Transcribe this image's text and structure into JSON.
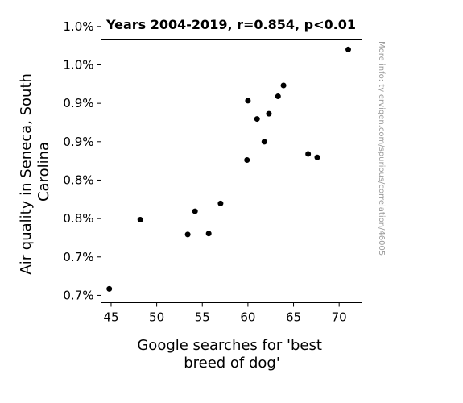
{
  "chart_data": {
    "type": "scatter",
    "title": "Years 2004-2019, r=0.854, p<0.01",
    "xlabel_lines": [
      "Google searches for 'best",
      "breed of dog'"
    ],
    "ylabel_lines": [
      "Air quality in Seneca, South",
      "Carolina"
    ],
    "side_note": "More info: tylervigen.com/spurious/correlation/46005",
    "xlim": [
      43.9,
      72.5
    ],
    "ylim": [
      0.006765,
      0.010185
    ],
    "x_ticks": [
      45,
      50,
      55,
      60,
      65,
      70
    ],
    "y_ticks": [
      {
        "value": 0.00686,
        "label": "0.7%"
      },
      {
        "value": 0.00736,
        "label": "0.7%"
      },
      {
        "value": 0.00786,
        "label": "0.8%"
      },
      {
        "value": 0.00836,
        "label": "0.8%"
      },
      {
        "value": 0.00886,
        "label": "0.9%"
      },
      {
        "value": 0.00936,
        "label": "0.9%"
      },
      {
        "value": 0.00986,
        "label": "1.0%"
      },
      {
        "value": 0.01036,
        "label": "1.0%"
      }
    ],
    "points": [
      {
        "x": 44.8,
        "y": 0.006945
      },
      {
        "x": 48.2,
        "y": 0.007845
      },
      {
        "x": 53.4,
        "y": 0.007653
      },
      {
        "x": 54.2,
        "y": 0.007955
      },
      {
        "x": 55.7,
        "y": 0.007665
      },
      {
        "x": 57.0,
        "y": 0.008057
      },
      {
        "x": 59.9,
        "y": 0.008622
      },
      {
        "x": 60.0,
        "y": 0.009394
      },
      {
        "x": 61.0,
        "y": 0.009156
      },
      {
        "x": 61.8,
        "y": 0.008859
      },
      {
        "x": 62.3,
        "y": 0.009224
      },
      {
        "x": 63.3,
        "y": 0.00945
      },
      {
        "x": 63.9,
        "y": 0.009592
      },
      {
        "x": 66.6,
        "y": 0.008701
      },
      {
        "x": 67.6,
        "y": 0.008656
      },
      {
        "x": 71.0,
        "y": 0.01006
      }
    ],
    "marker_color": "#000000",
    "grid": false
  }
}
